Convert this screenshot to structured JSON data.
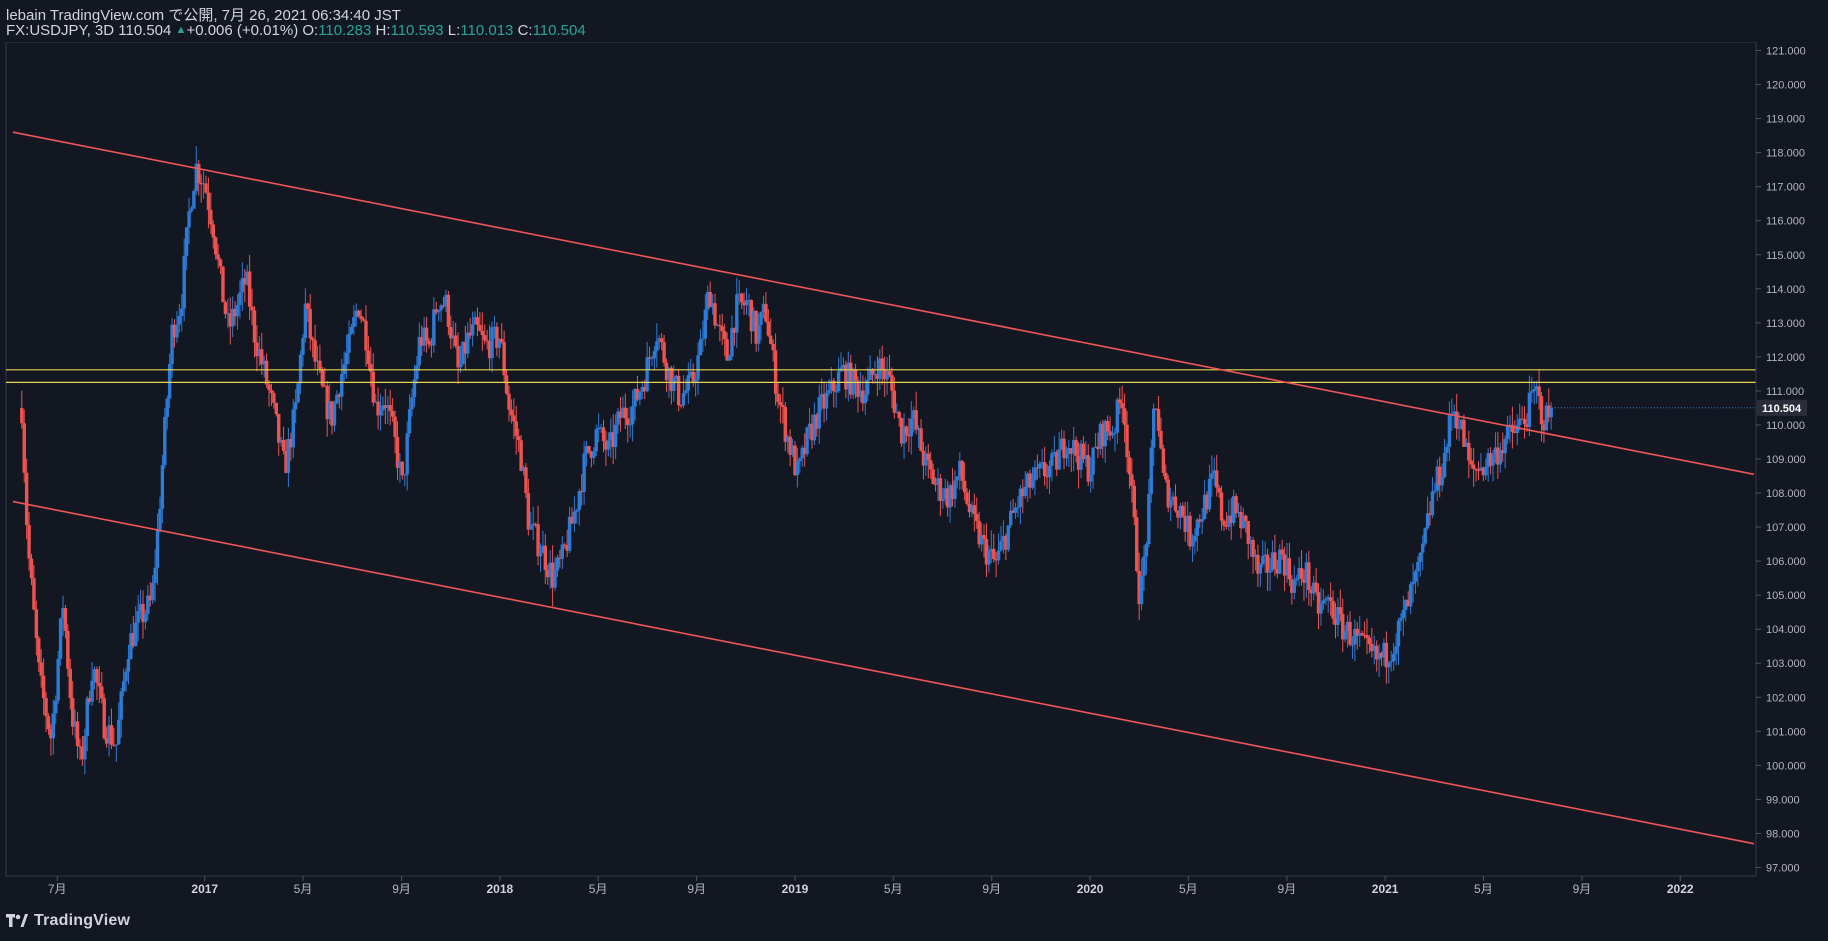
{
  "header": {
    "title": "lebain TradingView.com で公開, 7月 26, 2021 06:34:40 JST",
    "symbol": "FX:USDJPY, 3D 110.504",
    "change": "+0.006 (+0.01%)",
    "o_label": "O:",
    "o_value": "110.283",
    "h_label": "H:",
    "h_value": "110.593",
    "l_label": "L:",
    "l_value": "110.013",
    "c_label": "C:",
    "c_value": "110.504"
  },
  "footer": {
    "brand": "TradingView"
  },
  "chart_data": {
    "type": "candlestick",
    "symbol": "FX:USDJPY",
    "interval": "3D",
    "ylim": [
      96.75,
      121.25
    ],
    "y_ticks": [
      "97.000",
      "98.000",
      "99.000",
      "100.000",
      "101.000",
      "102.000",
      "103.000",
      "104.000",
      "105.000",
      "106.000",
      "107.000",
      "108.000",
      "109.000",
      "110.000",
      "111.000",
      "112.000",
      "113.000",
      "114.000",
      "115.000",
      "116.000",
      "117.000",
      "118.000",
      "119.000",
      "120.000",
      "121.000"
    ],
    "x_ticks": [
      {
        "label": "7月",
        "t": 2016.5
      },
      {
        "label": "2017",
        "t": 2017.0
      },
      {
        "label": "5月",
        "t": 2017.333
      },
      {
        "label": "9月",
        "t": 2017.667
      },
      {
        "label": "2018",
        "t": 2018.0
      },
      {
        "label": "5月",
        "t": 2018.333
      },
      {
        "label": "9月",
        "t": 2018.667
      },
      {
        "label": "2019",
        "t": 2019.0
      },
      {
        "label": "5月",
        "t": 2019.333
      },
      {
        "label": "9月",
        "t": 2019.667
      },
      {
        "label": "2020",
        "t": 2020.0
      },
      {
        "label": "5月",
        "t": 2020.333
      },
      {
        "label": "9月",
        "t": 2020.667
      },
      {
        "label": "2021",
        "t": 2021.0
      },
      {
        "label": "5月",
        "t": 2021.333
      },
      {
        "label": "9月",
        "t": 2021.667
      },
      {
        "label": "2022",
        "t": 2022.0
      }
    ],
    "last_price": "110.504",
    "up_color": "#2e7bd6",
    "down_color": "#ef5350",
    "price_path": [
      [
        2016.38,
        110.5
      ],
      [
        2016.4,
        106.5
      ],
      [
        2016.44,
        102.5
      ],
      [
        2016.48,
        100.8
      ],
      [
        2016.52,
        104.8
      ],
      [
        2016.55,
        101.5
      ],
      [
        2016.58,
        100.0
      ],
      [
        2016.62,
        103.0
      ],
      [
        2016.66,
        101.2
      ],
      [
        2016.7,
        100.6
      ],
      [
        2016.74,
        103.5
      ],
      [
        2016.78,
        104.3
      ],
      [
        2016.82,
        104.8
      ],
      [
        2016.84,
        106.8
      ],
      [
        2016.87,
        110.5
      ],
      [
        2016.89,
        112.8
      ],
      [
        2016.92,
        113.6
      ],
      [
        2016.95,
        116.5
      ],
      [
        2016.97,
        117.6
      ],
      [
        2017.0,
        117.1
      ],
      [
        2017.03,
        115.8
      ],
      [
        2017.05,
        114.4
      ],
      [
        2017.08,
        112.8
      ],
      [
        2017.11,
        113.5
      ],
      [
        2017.14,
        114.3
      ],
      [
        2017.17,
        112.6
      ],
      [
        2017.2,
        111.6
      ],
      [
        2017.23,
        110.5
      ],
      [
        2017.27,
        108.7
      ],
      [
        2017.31,
        110.5
      ],
      [
        2017.34,
        113.5
      ],
      [
        2017.37,
        112.0
      ],
      [
        2017.4,
        110.9
      ],
      [
        2017.43,
        110.2
      ],
      [
        2017.46,
        111.4
      ],
      [
        2017.49,
        112.3
      ],
      [
        2017.52,
        113.6
      ],
      [
        2017.55,
        112.5
      ],
      [
        2017.58,
        110.5
      ],
      [
        2017.61,
        110.8
      ],
      [
        2017.64,
        109.7
      ],
      [
        2017.67,
        108.2
      ],
      [
        2017.7,
        110.6
      ],
      [
        2017.73,
        112.6
      ],
      [
        2017.76,
        112.3
      ],
      [
        2017.79,
        113.7
      ],
      [
        2017.82,
        113.5
      ],
      [
        2017.86,
        111.5
      ],
      [
        2017.89,
        112.5
      ],
      [
        2017.92,
        112.8
      ],
      [
        2017.95,
        112.3
      ],
      [
        2018.0,
        112.6
      ],
      [
        2018.03,
        110.6
      ],
      [
        2018.07,
        109.2
      ],
      [
        2018.1,
        107.0
      ],
      [
        2018.14,
        106.4
      ],
      [
        2018.18,
        105.5
      ],
      [
        2018.21,
        106.0
      ],
      [
        2018.25,
        107.3
      ],
      [
        2018.29,
        109.0
      ],
      [
        2018.33,
        109.8
      ],
      [
        2018.37,
        109.2
      ],
      [
        2018.41,
        110.3
      ],
      [
        2018.45,
        110.5
      ],
      [
        2018.49,
        111.4
      ],
      [
        2018.53,
        112.8
      ],
      [
        2018.57,
        111.6
      ],
      [
        2018.61,
        110.8
      ],
      [
        2018.65,
        111.2
      ],
      [
        2018.68,
        112.2
      ],
      [
        2018.71,
        114.0
      ],
      [
        2018.74,
        112.8
      ],
      [
        2018.77,
        112.0
      ],
      [
        2018.8,
        113.4
      ],
      [
        2018.84,
        113.6
      ],
      [
        2018.87,
        112.6
      ],
      [
        2018.9,
        113.4
      ],
      [
        2018.94,
        111.0
      ],
      [
        2018.97,
        109.8
      ],
      [
        2019.01,
        108.5
      ],
      [
        2019.04,
        109.5
      ],
      [
        2019.08,
        110.4
      ],
      [
        2019.12,
        110.9
      ],
      [
        2019.16,
        111.6
      ],
      [
        2019.2,
        111.2
      ],
      [
        2019.24,
        111.0
      ],
      [
        2019.28,
        111.8
      ],
      [
        2019.32,
        111.3
      ],
      [
        2019.36,
        109.8
      ],
      [
        2019.4,
        110.2
      ],
      [
        2019.44,
        108.9
      ],
      [
        2019.48,
        108.2
      ],
      [
        2019.52,
        107.9
      ],
      [
        2019.56,
        108.6
      ],
      [
        2019.6,
        107.2
      ],
      [
        2019.64,
        106.4
      ],
      [
        2019.68,
        105.9
      ],
      [
        2019.72,
        106.9
      ],
      [
        2019.76,
        107.8
      ],
      [
        2019.8,
        108.3
      ],
      [
        2019.84,
        108.6
      ],
      [
        2019.88,
        108.8
      ],
      [
        2019.92,
        109.6
      ],
      [
        2019.96,
        109.1
      ],
      [
        2020.0,
        108.7
      ],
      [
        2020.04,
        109.8
      ],
      [
        2020.08,
        109.9
      ],
      [
        2020.11,
        110.9
      ],
      [
        2020.14,
        108.0
      ],
      [
        2020.17,
        104.8
      ],
      [
        2020.2,
        107.6
      ],
      [
        2020.22,
        111.1
      ],
      [
        2020.25,
        108.2
      ],
      [
        2020.28,
        107.8
      ],
      [
        2020.31,
        107.5
      ],
      [
        2020.34,
        106.7
      ],
      [
        2020.38,
        107.5
      ],
      [
        2020.42,
        108.4
      ],
      [
        2020.45,
        107.2
      ],
      [
        2020.49,
        107.5
      ],
      [
        2020.53,
        106.9
      ],
      [
        2020.57,
        105.6
      ],
      [
        2020.61,
        105.9
      ],
      [
        2020.65,
        106.2
      ],
      [
        2020.69,
        105.3
      ],
      [
        2020.73,
        105.7
      ],
      [
        2020.77,
        104.6
      ],
      [
        2020.81,
        104.8
      ],
      [
        2020.85,
        104.1
      ],
      [
        2020.89,
        103.8
      ],
      [
        2020.93,
        103.4
      ],
      [
        2020.97,
        103.1
      ],
      [
        2021.0,
        103.2
      ],
      [
        2021.04,
        103.8
      ],
      [
        2021.08,
        104.8
      ],
      [
        2021.12,
        105.9
      ],
      [
        2021.16,
        107.9
      ],
      [
        2021.2,
        109.0
      ],
      [
        2021.23,
        110.6
      ],
      [
        2021.26,
        109.8
      ],
      [
        2021.29,
        108.6
      ],
      [
        2021.33,
        108.8
      ],
      [
        2021.37,
        109.1
      ],
      [
        2021.41,
        109.6
      ],
      [
        2021.45,
        109.9
      ],
      [
        2021.48,
        110.3
      ],
      [
        2021.51,
        111.0
      ],
      [
        2021.54,
        110.1
      ],
      [
        2021.565,
        110.504
      ]
    ],
    "channel_upper": [
      [
        2016.35,
        118.6
      ],
      [
        2022.25,
        108.55
      ]
    ],
    "channel_lower": [
      [
        2016.35,
        107.75
      ],
      [
        2022.25,
        97.7
      ]
    ],
    "resistance_band": [
      111.25,
      111.62
    ]
  }
}
